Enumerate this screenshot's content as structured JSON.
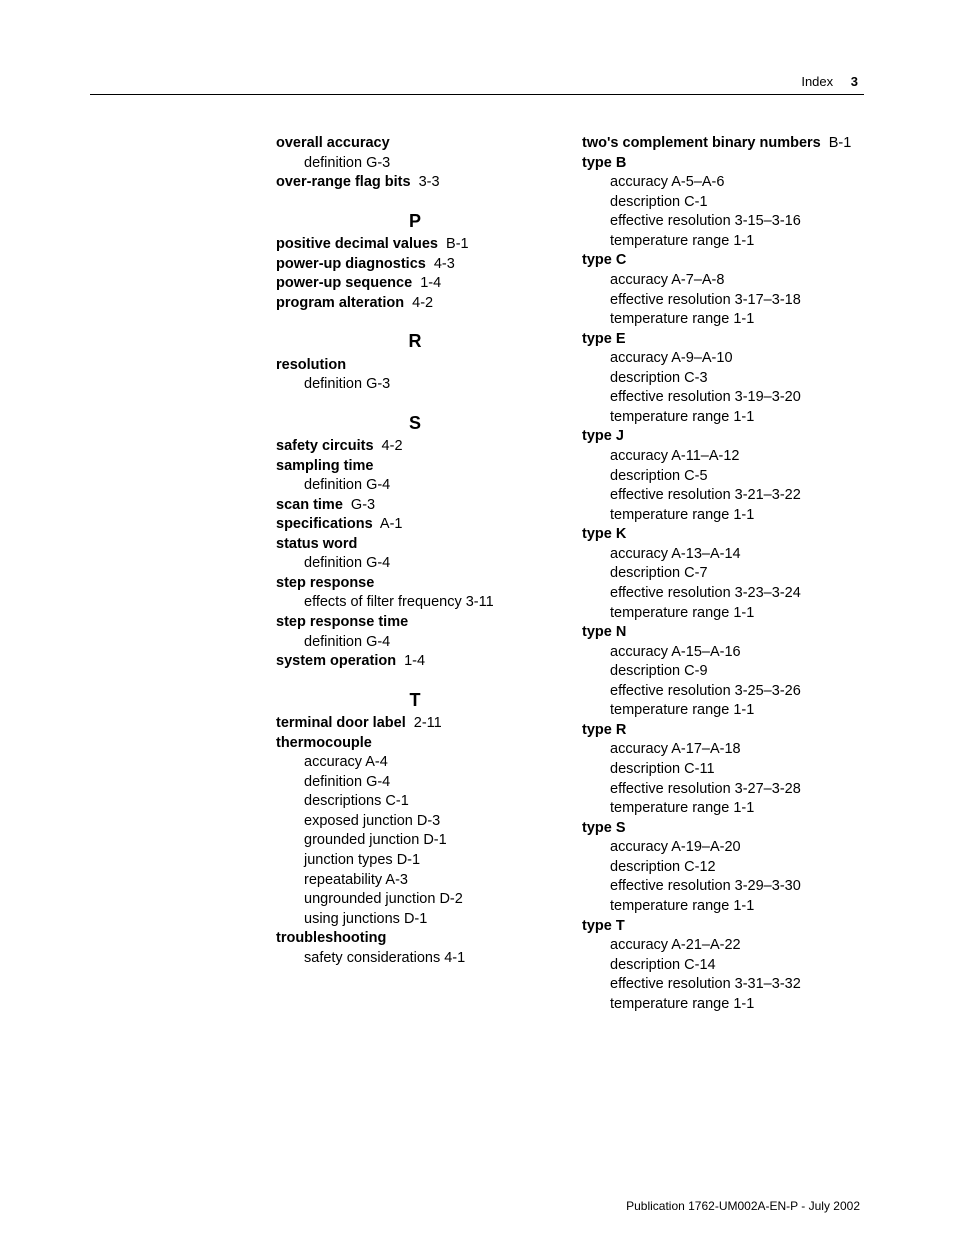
{
  "header": {
    "label": "Index",
    "page": "3"
  },
  "footer": "Publication 1762-UM002A-EN-P - July 2002",
  "left": {
    "pre": [
      {
        "term": "overall accuracy",
        "locator": ""
      },
      {
        "sub": "definition G-3"
      },
      {
        "term": "over-range flag bits",
        "locator": "3-3"
      }
    ],
    "sections": [
      {
        "letter": "P",
        "rows": [
          {
            "term": "positive decimal values",
            "locator": "B-1"
          },
          {
            "term": "power-up diagnostics",
            "locator": "4-3"
          },
          {
            "term": "power-up sequence",
            "locator": "1-4"
          },
          {
            "term": "program alteration",
            "locator": "4-2"
          }
        ]
      },
      {
        "letter": "R",
        "rows": [
          {
            "term": "resolution",
            "locator": ""
          },
          {
            "sub": "definition G-3"
          }
        ]
      },
      {
        "letter": "S",
        "rows": [
          {
            "term": "safety circuits",
            "locator": "4-2"
          },
          {
            "term": "sampling time",
            "locator": ""
          },
          {
            "sub": "definition G-4"
          },
          {
            "term": "scan time",
            "locator": "G-3"
          },
          {
            "term": "specifications",
            "locator": "A-1"
          },
          {
            "term": "status word",
            "locator": ""
          },
          {
            "sub": "definition G-4"
          },
          {
            "term": "step response",
            "locator": ""
          },
          {
            "sub": "effects of filter frequency 3-11"
          },
          {
            "term": "step response time",
            "locator": ""
          },
          {
            "sub": "definition G-4"
          },
          {
            "term": "system operation",
            "locator": "1-4"
          }
        ]
      },
      {
        "letter": "T",
        "rows": [
          {
            "term": "terminal door label",
            "locator": "2-11"
          },
          {
            "term": "thermocouple",
            "locator": ""
          },
          {
            "sub": "accuracy A-4"
          },
          {
            "sub": "definition G-4"
          },
          {
            "sub": "descriptions C-1"
          },
          {
            "sub": "exposed junction D-3"
          },
          {
            "sub": "grounded junction D-1"
          },
          {
            "sub": "junction types D-1"
          },
          {
            "sub": "repeatability A-3"
          },
          {
            "sub": "ungrounded junction D-2"
          },
          {
            "sub": "using junctions D-1"
          },
          {
            "term": "troubleshooting",
            "locator": ""
          },
          {
            "sub": "safety considerations 4-1"
          }
        ]
      }
    ]
  },
  "right": {
    "rows": [
      {
        "term": "two's complement binary numbers",
        "locator": "B-1"
      },
      {
        "term": "type B",
        "locator": ""
      },
      {
        "sub": "accuracy A-5–A-6"
      },
      {
        "sub": "description C-1"
      },
      {
        "sub": "effective resolution 3-15–3-16"
      },
      {
        "sub": "temperature range 1-1"
      },
      {
        "term": "type C",
        "locator": ""
      },
      {
        "sub": "accuracy A-7–A-8"
      },
      {
        "sub": "effective resolution 3-17–3-18"
      },
      {
        "sub": "temperature range 1-1"
      },
      {
        "term": "type E",
        "locator": ""
      },
      {
        "sub": "accuracy A-9–A-10"
      },
      {
        "sub": "description C-3"
      },
      {
        "sub": "effective resolution 3-19–3-20"
      },
      {
        "sub": "temperature range 1-1"
      },
      {
        "term": "type J",
        "locator": ""
      },
      {
        "sub": "accuracy A-11–A-12"
      },
      {
        "sub": "description C-5"
      },
      {
        "sub": "effective resolution 3-21–3-22"
      },
      {
        "sub": "temperature range 1-1"
      },
      {
        "term": "type K",
        "locator": ""
      },
      {
        "sub": "accuracy A-13–A-14"
      },
      {
        "sub": "description C-7"
      },
      {
        "sub": "effective resolution 3-23–3-24"
      },
      {
        "sub": "temperature range 1-1"
      },
      {
        "term": "type N",
        "locator": ""
      },
      {
        "sub": "accuracy A-15–A-16"
      },
      {
        "sub": "description C-9"
      },
      {
        "sub": "effective resolution 3-25–3-26"
      },
      {
        "sub": "temperature range 1-1"
      },
      {
        "term": "type R",
        "locator": ""
      },
      {
        "sub": "accuracy A-17–A-18"
      },
      {
        "sub": "description C-11"
      },
      {
        "sub": "effective resolution 3-27–3-28"
      },
      {
        "sub": "temperature range 1-1"
      },
      {
        "term": "type S",
        "locator": ""
      },
      {
        "sub": "accuracy A-19–A-20"
      },
      {
        "sub": "description C-12"
      },
      {
        "sub": "effective resolution 3-29–3-30"
      },
      {
        "sub": "temperature range 1-1"
      },
      {
        "term": "type T",
        "locator": ""
      },
      {
        "sub": "accuracy A-21–A-22"
      },
      {
        "sub": "description C-14"
      },
      {
        "sub": "effective resolution 3-31–3-32"
      },
      {
        "sub": "temperature range 1-1"
      }
    ]
  }
}
